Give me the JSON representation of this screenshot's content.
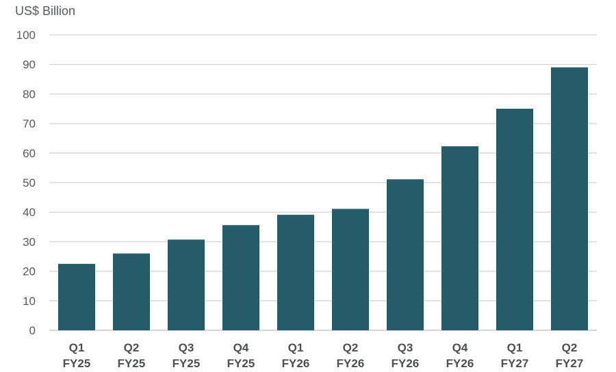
{
  "chart_data": {
    "type": "bar",
    "title": "",
    "ylabel": "US$ Billion",
    "xlabel": "",
    "ylim": [
      0,
      100
    ],
    "yticks": [
      "0",
      "10",
      "20",
      "30",
      "40",
      "50",
      "60",
      "70",
      "80",
      "90",
      "100"
    ],
    "categories": [
      [
        "Q1",
        "FY25"
      ],
      [
        "Q2",
        "FY25"
      ],
      [
        "Q3",
        "FY25"
      ],
      [
        "Q4",
        "FY25"
      ],
      [
        "Q1",
        "FY26"
      ],
      [
        "Q2",
        "FY26"
      ],
      [
        "Q3",
        "FY26"
      ],
      [
        "Q4",
        "FY26"
      ],
      [
        "Q1",
        "FY27"
      ],
      [
        "Q2",
        "FY27"
      ]
    ],
    "values": [
      22.5,
      26,
      30.7,
      35.6,
      39.1,
      41.1,
      51.1,
      62.3,
      75.0,
      89.0
    ],
    "grid": true,
    "legend": "none",
    "colors": {
      "bar": "#265c6a",
      "grid": "#d7d9da",
      "text": "#4a4f52"
    }
  }
}
